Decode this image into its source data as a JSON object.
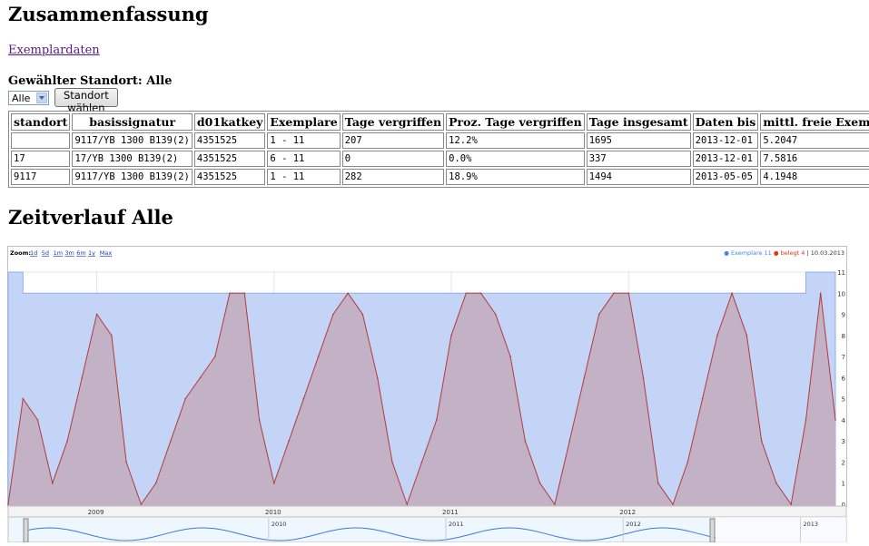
{
  "page": {
    "title": "Zusammenfassung",
    "link_exemplardaten": "Exemplardaten",
    "standort_label": "Gewählter Standort:",
    "standort_value": "Alle",
    "select_value": "Alle",
    "choose_button": "Standort wählen",
    "section_title": "Zeitverlauf Alle"
  },
  "table": {
    "headers": [
      "standort",
      "basissignatur",
      "d01katkey",
      "Exemplare",
      "Tage vergriffen",
      "Proz. Tage vergriffen",
      "Tage insgesamt",
      "Daten bis",
      "mittl. freie Exempla"
    ],
    "rows": [
      [
        "",
        "9117/YB 1300 B139(2)",
        "4351525",
        "1 - 11",
        "207",
        "12.2%",
        "1695",
        "2013-12-01",
        "5.2047"
      ],
      [
        "17",
        "17/YB 1300 B139(2)",
        "4351525",
        "6 - 11",
        "0",
        "0.0%",
        "337",
        "2013-12-01",
        "7.5816"
      ],
      [
        "9117",
        "9117/YB 1300 B139(2)",
        "4351525",
        "1 - 11",
        "282",
        "18.9%",
        "1494",
        "2013-05-05",
        "4.1948"
      ]
    ]
  },
  "chart": {
    "zoom_label": "Zoom:",
    "zoom_options": [
      "1d",
      "5d",
      "1m",
      "3m",
      "6m",
      "1y",
      "Max"
    ],
    "legend": [
      {
        "label": "Exemplare 11",
        "color": "#4684ee"
      },
      {
        "label": "belegt 4",
        "color": "#dc3912"
      }
    ],
    "legend_date": "| 10.03.2013",
    "colors": {
      "exemplare_fill": "#c3d4f7",
      "exemplare_line": "#8fb0ee",
      "belegt_fill": "#c3b0c3",
      "belegt_line": "#b33a3a",
      "background": "#ffffff"
    }
  },
  "chart_data": {
    "type": "area",
    "title": "",
    "xlabel": "",
    "ylabel": "",
    "ylim": [
      0,
      11
    ],
    "yticks": [
      0,
      1,
      2,
      3,
      4,
      5,
      6,
      7,
      8,
      9,
      10,
      11
    ],
    "xticks": [
      "2009",
      "2010",
      "2011",
      "2012"
    ],
    "navigator_ticks": [
      "2010",
      "2011",
      "2012",
      "2013"
    ],
    "x_range": [
      "2008-07",
      "2013-03"
    ],
    "series": [
      {
        "name": "Exemplare 11",
        "x": [
          "2008-07",
          "2008-08",
          "2008-08",
          "2013-01",
          "2013-01",
          "2013-03"
        ],
        "values": [
          11,
          11,
          10,
          10,
          11,
          11
        ]
      },
      {
        "name": "belegt 4",
        "x": [
          "2008-07",
          "2008-08",
          "2008-09",
          "2008-10",
          "2008-11",
          "2008-12",
          "2009-01",
          "2009-02",
          "2009-03",
          "2009-04",
          "2009-05",
          "2009-06",
          "2009-07",
          "2009-08",
          "2009-09",
          "2009-10",
          "2009-11",
          "2009-12",
          "2010-01",
          "2010-02",
          "2010-03",
          "2010-04",
          "2010-05",
          "2010-06",
          "2010-07",
          "2010-08",
          "2010-09",
          "2010-10",
          "2010-11",
          "2010-12",
          "2011-01",
          "2011-02",
          "2011-03",
          "2011-04",
          "2011-05",
          "2011-06",
          "2011-07",
          "2011-08",
          "2011-09",
          "2011-10",
          "2011-11",
          "2011-12",
          "2012-01",
          "2012-02",
          "2012-03",
          "2012-04",
          "2012-05",
          "2012-06",
          "2012-07",
          "2012-08",
          "2012-09",
          "2012-10",
          "2012-11",
          "2012-12",
          "2013-01",
          "2013-02",
          "2013-03"
        ],
        "values": [
          0,
          5,
          4,
          1,
          3,
          6,
          9,
          8,
          2,
          0,
          1,
          3,
          5,
          6,
          7,
          10,
          10,
          4,
          1,
          3,
          5,
          7,
          9,
          10,
          9,
          6,
          2,
          0,
          2,
          4,
          8,
          10,
          10,
          9,
          7,
          3,
          1,
          0,
          3,
          6,
          9,
          10,
          10,
          6,
          1,
          0,
          2,
          5,
          8,
          10,
          8,
          3,
          1,
          0,
          4,
          10,
          4
        ]
      }
    ]
  }
}
